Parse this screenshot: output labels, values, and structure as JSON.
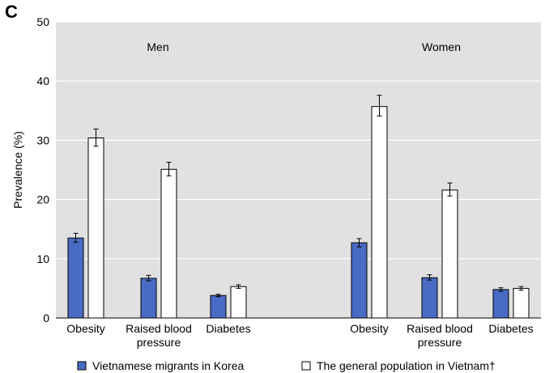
{
  "panel_label": "C",
  "chart_data": {
    "type": "bar",
    "ylabel": "Prevalence (%)",
    "ylim": [
      0,
      50
    ],
    "yticks": [
      0,
      10,
      20,
      30,
      40,
      50
    ],
    "grid": true,
    "legend_position": "bottom",
    "groups": [
      {
        "name": "Men",
        "categories": [
          {
            "label": [
              "Obesity"
            ]
          },
          {
            "label": [
              "Raised blood",
              "pressure"
            ]
          },
          {
            "label": [
              "Diabetes"
            ]
          }
        ]
      },
      {
        "name": "Women",
        "categories": [
          {
            "label": [
              "Obesity"
            ]
          },
          {
            "label": [
              "Raised blood",
              "pressure"
            ]
          },
          {
            "label": [
              "Diabetes"
            ]
          }
        ]
      }
    ],
    "series": [
      {
        "name": "Vietnamese migrants in Korea",
        "color": "#4a6bc4",
        "values": [
          13.5,
          6.7,
          3.8,
          12.7,
          6.8,
          4.8
        ],
        "error_low": [
          12.8,
          6.3,
          3.6,
          12.0,
          6.4,
          4.5
        ],
        "error_high": [
          14.3,
          7.2,
          4.0,
          13.4,
          7.3,
          5.1
        ]
      },
      {
        "name": "The general population in Vietnam†",
        "color": "#ffffff",
        "values": [
          30.4,
          25.1,
          5.3,
          35.7,
          21.6,
          5.0
        ],
        "error_low": [
          29.0,
          24.0,
          5.0,
          34.1,
          20.6,
          4.7
        ],
        "error_high": [
          31.9,
          26.3,
          5.6,
          37.6,
          22.8,
          5.3
        ]
      }
    ]
  }
}
